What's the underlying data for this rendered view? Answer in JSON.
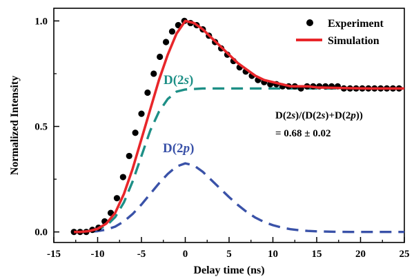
{
  "chart_data": {
    "type": "line",
    "xlabel": "Delay time (ns)",
    "ylabel": "Normalized Intensity",
    "xlim": [
      -15,
      25
    ],
    "ylim": [
      -0.05,
      1.06
    ],
    "x_ticks": [
      -15,
      -10,
      -5,
      0,
      5,
      10,
      15,
      20,
      25
    ],
    "x_tick_labels": [
      "-15",
      "-10",
      "-5",
      "0",
      "5",
      "10",
      "15",
      "20",
      "25"
    ],
    "y_ticks": [
      0.0,
      0.5,
      1.0
    ],
    "y_tick_labels": [
      "0.0",
      "0.5",
      "1.0"
    ],
    "legend": {
      "placement": "top-right",
      "entries": [
        "Experiment",
        "Simulation"
      ]
    },
    "colors": {
      "experiment": "#000000",
      "simulation": "#e8262a",
      "d2s": "#1d8f86",
      "d2p": "#3a52a8"
    },
    "series": [
      {
        "name": "Experiment",
        "style": "markers",
        "x": [
          -12.7,
          -12.0,
          -11.3,
          -10.6,
          -9.9,
          -9.2,
          -8.5,
          -7.8,
          -7.1,
          -6.4,
          -5.7,
          -5.0,
          -4.3,
          -3.6,
          -2.9,
          -2.2,
          -1.5,
          -0.8,
          -0.1,
          0.6,
          1.3,
          2.0,
          2.7,
          3.4,
          4.1,
          4.8,
          5.5,
          6.2,
          6.9,
          7.6,
          8.3,
          9.0,
          9.7,
          10.4,
          11.1,
          11.8,
          12.5,
          13.2,
          13.9,
          14.6,
          15.3,
          16.0,
          16.7,
          17.4,
          18.1,
          18.8,
          19.5,
          20.2,
          20.9,
          21.6,
          22.3,
          23.0,
          23.7,
          24.4
        ],
        "y": [
          0.0,
          0.0,
          0.0,
          0.01,
          0.02,
          0.05,
          0.09,
          0.16,
          0.26,
          0.36,
          0.47,
          0.56,
          0.66,
          0.75,
          0.83,
          0.9,
          0.95,
          0.98,
          1.0,
          0.99,
          0.98,
          0.96,
          0.93,
          0.9,
          0.87,
          0.84,
          0.81,
          0.78,
          0.76,
          0.74,
          0.72,
          0.71,
          0.7,
          0.7,
          0.69,
          0.69,
          0.69,
          0.68,
          0.69,
          0.69,
          0.69,
          0.69,
          0.69,
          0.69,
          0.68,
          0.68,
          0.68,
          0.68,
          0.68,
          0.68,
          0.68,
          0.68,
          0.68,
          0.68
        ]
      },
      {
        "name": "Simulation",
        "style": "solid",
        "x": [
          -12.7,
          -12,
          -11,
          -10,
          -9,
          -8,
          -7,
          -6,
          -5,
          -4,
          -3,
          -2,
          -1,
          0,
          1,
          2,
          3,
          4,
          5,
          6,
          7,
          8,
          9,
          10,
          11,
          12,
          13,
          14,
          15,
          17,
          19,
          21,
          23,
          25
        ],
        "y": [
          0.0,
          0.0,
          0.004,
          0.015,
          0.04,
          0.09,
          0.18,
          0.3,
          0.44,
          0.58,
          0.72,
          0.84,
          0.94,
          1.0,
          0.99,
          0.96,
          0.92,
          0.88,
          0.84,
          0.8,
          0.77,
          0.74,
          0.72,
          0.71,
          0.7,
          0.69,
          0.69,
          0.69,
          0.685,
          0.683,
          0.681,
          0.68,
          0.68,
          0.68
        ]
      },
      {
        "name": "D(2s)",
        "style": "dashed",
        "x": [
          -12.7,
          -12,
          -11,
          -10,
          -9,
          -8,
          -7,
          -6,
          -5,
          -4,
          -3,
          -2,
          -1,
          0,
          2,
          4,
          6,
          8,
          10,
          15,
          20,
          25
        ],
        "y": [
          0.0,
          0.0,
          0.003,
          0.012,
          0.03,
          0.07,
          0.14,
          0.24,
          0.36,
          0.48,
          0.57,
          0.63,
          0.665,
          0.675,
          0.68,
          0.68,
          0.68,
          0.68,
          0.68,
          0.68,
          0.68,
          0.68
        ]
      },
      {
        "name": "D(2p)",
        "style": "dashed",
        "x": [
          -12.7,
          -12,
          -11,
          -10,
          -9,
          -8,
          -7,
          -6,
          -5,
          -4,
          -3,
          -2,
          -1,
          0,
          1,
          2,
          3,
          4,
          5,
          6,
          7,
          8,
          9,
          10,
          11,
          12,
          13,
          14,
          15,
          17,
          19,
          21,
          23,
          25
        ],
        "y": [
          0.0,
          0.0,
          0.001,
          0.004,
          0.011,
          0.025,
          0.05,
          0.085,
          0.13,
          0.18,
          0.23,
          0.275,
          0.31,
          0.325,
          0.315,
          0.285,
          0.245,
          0.205,
          0.165,
          0.128,
          0.095,
          0.068,
          0.047,
          0.032,
          0.021,
          0.013,
          0.008,
          0.005,
          0.003,
          0.001,
          0.0,
          0.0,
          0.0,
          0.0
        ]
      }
    ],
    "annotations": {
      "d2s_label": {
        "pre": "D(2",
        "ital": "s",
        "post": ")"
      },
      "d2p_label": {
        "pre": "D(2",
        "ital": "p",
        "post": ")"
      },
      "ratio_line1": {
        "a": "D(2",
        "b": "s",
        "c": ")/(D(2",
        "d": "s",
        "e": ")+D(2",
        "f": "p",
        "g": "))"
      },
      "ratio_line2": "= 0.68 ± 0.02"
    }
  }
}
